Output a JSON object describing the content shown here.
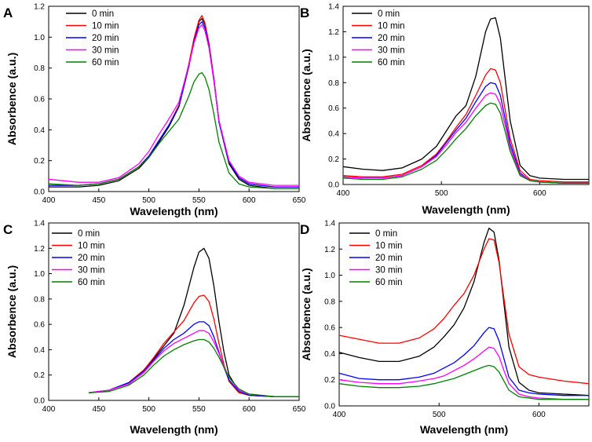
{
  "chart_data": [
    {
      "type": "line",
      "panel": "A",
      "xlabel": "Wavelength (nm)",
      "ylabel": "Absorbence (a.u.)",
      "xlim": [
        400,
        650
      ],
      "ylim": [
        0,
        1.2
      ],
      "xticks": [
        "400",
        "450",
        "500",
        "550",
        "600",
        "650"
      ],
      "yticks": [
        "0.0",
        "0.2",
        "0.4",
        "0.6",
        "0.8",
        "1.0",
        "1.2"
      ],
      "legend_position": "top-left",
      "series": [
        {
          "name": "0 min",
          "color": "#000000",
          "x": [
            400,
            430,
            450,
            470,
            490,
            500,
            510,
            520,
            530,
            540,
            545,
            550,
            553,
            556,
            560,
            565,
            570,
            580,
            590,
            600,
            625,
            650
          ],
          "y": [
            0.03,
            0.03,
            0.04,
            0.07,
            0.15,
            0.22,
            0.32,
            0.42,
            0.55,
            0.82,
            0.98,
            1.1,
            1.12,
            1.08,
            0.95,
            0.72,
            0.45,
            0.18,
            0.08,
            0.04,
            0.02,
            0.02
          ]
        },
        {
          "name": "10 min",
          "color": "#ff0000",
          "x": [
            400,
            430,
            450,
            470,
            490,
            500,
            510,
            520,
            530,
            540,
            545,
            550,
            553,
            556,
            560,
            565,
            570,
            580,
            590,
            600,
            625,
            650
          ],
          "y": [
            0.04,
            0.04,
            0.05,
            0.08,
            0.16,
            0.23,
            0.33,
            0.43,
            0.56,
            0.83,
            0.99,
            1.11,
            1.14,
            1.09,
            0.96,
            0.73,
            0.46,
            0.19,
            0.09,
            0.05,
            0.03,
            0.03
          ]
        },
        {
          "name": "20 min",
          "color": "#0000ff",
          "x": [
            400,
            430,
            450,
            470,
            490,
            500,
            510,
            520,
            530,
            540,
            545,
            550,
            553,
            556,
            560,
            565,
            570,
            580,
            590,
            600,
            625,
            650
          ],
          "y": [
            0.04,
            0.04,
            0.05,
            0.08,
            0.16,
            0.23,
            0.33,
            0.43,
            0.55,
            0.81,
            0.97,
            1.08,
            1.1,
            1.06,
            0.94,
            0.72,
            0.45,
            0.19,
            0.09,
            0.05,
            0.03,
            0.03
          ]
        },
        {
          "name": "30 min",
          "color": "#ff00ff",
          "x": [
            400,
            430,
            450,
            470,
            490,
            500,
            510,
            520,
            530,
            540,
            545,
            550,
            553,
            556,
            560,
            565,
            570,
            580,
            590,
            600,
            625,
            650
          ],
          "y": [
            0.08,
            0.06,
            0.06,
            0.09,
            0.18,
            0.26,
            0.37,
            0.47,
            0.58,
            0.82,
            0.96,
            1.06,
            1.08,
            1.04,
            0.93,
            0.71,
            0.46,
            0.2,
            0.1,
            0.06,
            0.04,
            0.04
          ]
        },
        {
          "name": "60 min",
          "color": "#008000",
          "x": [
            400,
            430,
            450,
            470,
            490,
            500,
            510,
            520,
            530,
            540,
            545,
            550,
            553,
            556,
            560,
            565,
            570,
            580,
            590,
            600,
            625,
            650
          ],
          "y": [
            0.05,
            0.04,
            0.05,
            0.08,
            0.16,
            0.22,
            0.31,
            0.39,
            0.47,
            0.62,
            0.71,
            0.76,
            0.77,
            0.74,
            0.66,
            0.5,
            0.32,
            0.12,
            0.05,
            0.03,
            0.02,
            0.02
          ]
        }
      ]
    },
    {
      "type": "line",
      "panel": "B",
      "xlabel": "Wavelength (nm)",
      "ylabel": "Absorbence (a.u.)",
      "xlim": [
        400,
        650
      ],
      "ylim": [
        0,
        1.4
      ],
      "xticks": [
        "400",
        "500",
        "600"
      ],
      "yticks": [
        "0.0",
        "0.2",
        "0.4",
        "0.6",
        "0.8",
        "1.0",
        "1.2",
        "1.4"
      ],
      "legend_position": "top-left",
      "series": [
        {
          "name": "0 min",
          "color": "#000000",
          "x": [
            400,
            420,
            440,
            460,
            480,
            495,
            505,
            515,
            525,
            535,
            545,
            550,
            555,
            560,
            565,
            570,
            580,
            590,
            600,
            625,
            650
          ],
          "y": [
            0.14,
            0.12,
            0.11,
            0.13,
            0.2,
            0.3,
            0.42,
            0.54,
            0.62,
            0.85,
            1.2,
            1.3,
            1.31,
            1.15,
            0.82,
            0.5,
            0.15,
            0.07,
            0.05,
            0.04,
            0.04
          ]
        },
        {
          "name": "10 min",
          "color": "#ff0000",
          "x": [
            400,
            420,
            440,
            460,
            480,
            495,
            505,
            515,
            525,
            535,
            545,
            550,
            555,
            560,
            565,
            570,
            580,
            590,
            600,
            625,
            650
          ],
          "y": [
            0.07,
            0.06,
            0.06,
            0.08,
            0.15,
            0.24,
            0.34,
            0.45,
            0.55,
            0.7,
            0.86,
            0.91,
            0.9,
            0.8,
            0.58,
            0.36,
            0.11,
            0.04,
            0.03,
            0.02,
            0.02
          ]
        },
        {
          "name": "20 min",
          "color": "#0000ff",
          "x": [
            400,
            420,
            440,
            460,
            480,
            495,
            505,
            515,
            525,
            535,
            545,
            550,
            555,
            560,
            565,
            570,
            580,
            590,
            600,
            625,
            650
          ],
          "y": [
            0.06,
            0.05,
            0.05,
            0.07,
            0.14,
            0.23,
            0.33,
            0.43,
            0.52,
            0.65,
            0.77,
            0.8,
            0.79,
            0.7,
            0.51,
            0.32,
            0.09,
            0.03,
            0.02,
            0.01,
            0.01
          ]
        },
        {
          "name": "30 min",
          "color": "#ff00ff",
          "x": [
            400,
            420,
            440,
            460,
            480,
            495,
            505,
            515,
            525,
            535,
            545,
            550,
            555,
            560,
            565,
            570,
            580,
            590,
            600,
            625,
            650
          ],
          "y": [
            0.06,
            0.05,
            0.05,
            0.07,
            0.14,
            0.22,
            0.31,
            0.41,
            0.49,
            0.6,
            0.7,
            0.72,
            0.71,
            0.63,
            0.46,
            0.29,
            0.08,
            0.03,
            0.02,
            0.01,
            0.01
          ]
        },
        {
          "name": "60 min",
          "color": "#008000",
          "x": [
            400,
            420,
            440,
            460,
            480,
            495,
            505,
            515,
            525,
            535,
            545,
            550,
            555,
            560,
            565,
            570,
            580,
            590,
            600,
            625,
            650
          ],
          "y": [
            0.05,
            0.04,
            0.04,
            0.06,
            0.12,
            0.19,
            0.27,
            0.36,
            0.44,
            0.54,
            0.62,
            0.64,
            0.63,
            0.56,
            0.41,
            0.26,
            0.07,
            0.03,
            0.02,
            0.01,
            0.01
          ]
        }
      ]
    },
    {
      "type": "line",
      "panel": "C",
      "xlabel": "Wavelength (nm)",
      "ylabel": "Absorbence (a.u.)",
      "xlim": [
        400,
        650
      ],
      "ylim": [
        0,
        1.4
      ],
      "xticks": [
        "400",
        "450",
        "500",
        "550",
        "600",
        "650"
      ],
      "yticks": [
        "0.0",
        "0.2",
        "0.4",
        "0.6",
        "0.8",
        "1.0",
        "1.2",
        "1.4"
      ],
      "legend_position": "top-left",
      "series": [
        {
          "name": "0 min",
          "color": "#000000",
          "x": [
            440,
            460,
            480,
            495,
            505,
            515,
            525,
            535,
            545,
            550,
            555,
            560,
            565,
            570,
            575,
            580,
            590,
            600,
            625,
            650
          ],
          "y": [
            0.06,
            0.08,
            0.14,
            0.24,
            0.33,
            0.43,
            0.53,
            0.75,
            1.05,
            1.17,
            1.2,
            1.12,
            0.9,
            0.62,
            0.38,
            0.2,
            0.07,
            0.04,
            0.03,
            0.03
          ]
        },
        {
          "name": "10 min",
          "color": "#ff0000",
          "x": [
            440,
            460,
            480,
            495,
            505,
            515,
            525,
            535,
            545,
            550,
            555,
            560,
            565,
            570,
            575,
            580,
            590,
            600,
            625,
            650
          ],
          "y": [
            0.06,
            0.08,
            0.14,
            0.24,
            0.34,
            0.45,
            0.54,
            0.63,
            0.77,
            0.82,
            0.83,
            0.78,
            0.64,
            0.45,
            0.28,
            0.15,
            0.06,
            0.04,
            0.03,
            0.03
          ]
        },
        {
          "name": "20 min",
          "color": "#0000ff",
          "x": [
            440,
            460,
            480,
            495,
            505,
            515,
            525,
            535,
            545,
            550,
            555,
            560,
            565,
            570,
            575,
            580,
            590,
            600,
            625,
            650
          ],
          "y": [
            0.06,
            0.08,
            0.14,
            0.23,
            0.32,
            0.41,
            0.48,
            0.53,
            0.6,
            0.62,
            0.62,
            0.59,
            0.5,
            0.38,
            0.26,
            0.16,
            0.07,
            0.04,
            0.03,
            0.03
          ]
        },
        {
          "name": "30 min",
          "color": "#ff00ff",
          "x": [
            440,
            460,
            480,
            495,
            505,
            515,
            525,
            535,
            545,
            550,
            555,
            560,
            565,
            570,
            575,
            580,
            590,
            600,
            625,
            650
          ],
          "y": [
            0.06,
            0.08,
            0.13,
            0.22,
            0.31,
            0.39,
            0.45,
            0.49,
            0.53,
            0.55,
            0.55,
            0.53,
            0.46,
            0.37,
            0.27,
            0.18,
            0.08,
            0.05,
            0.03,
            0.03
          ]
        },
        {
          "name": "60 min",
          "color": "#008000",
          "x": [
            440,
            460,
            480,
            495,
            505,
            515,
            525,
            535,
            545,
            550,
            555,
            560,
            565,
            570,
            575,
            580,
            590,
            600,
            625,
            650
          ],
          "y": [
            0.06,
            0.07,
            0.12,
            0.2,
            0.28,
            0.35,
            0.4,
            0.44,
            0.47,
            0.48,
            0.48,
            0.46,
            0.41,
            0.34,
            0.26,
            0.18,
            0.09,
            0.05,
            0.03,
            0.03
          ]
        }
      ]
    },
    {
      "type": "line",
      "panel": "D",
      "xlabel": "Wavelength (nm)",
      "ylabel": "Absorbence (a.u.)",
      "xlim": [
        400,
        650
      ],
      "ylim": [
        0,
        1.4
      ],
      "xticks": [
        "400",
        "500",
        "600"
      ],
      "yticks": [
        "0.0",
        "0.2",
        "0.4",
        "0.6",
        "0.8",
        "1.0",
        "1.2",
        "1.4"
      ],
      "legend_position": "top-left",
      "series": [
        {
          "name": "0 min",
          "color": "#000000",
          "x": [
            400,
            420,
            440,
            460,
            480,
            495,
            505,
            515,
            525,
            535,
            545,
            550,
            555,
            560,
            565,
            570,
            580,
            590,
            600,
            625,
            650
          ],
          "y": [
            0.41,
            0.37,
            0.34,
            0.34,
            0.38,
            0.45,
            0.53,
            0.62,
            0.75,
            0.95,
            1.25,
            1.36,
            1.33,
            1.12,
            0.78,
            0.45,
            0.18,
            0.12,
            0.1,
            0.09,
            0.08
          ]
        },
        {
          "name": "10 min",
          "color": "#ff0000",
          "x": [
            400,
            420,
            440,
            460,
            480,
            495,
            505,
            515,
            525,
            535,
            545,
            550,
            555,
            560,
            565,
            570,
            580,
            590,
            600,
            625,
            650
          ],
          "y": [
            0.54,
            0.51,
            0.48,
            0.48,
            0.52,
            0.59,
            0.67,
            0.77,
            0.86,
            1.0,
            1.2,
            1.28,
            1.27,
            1.1,
            0.82,
            0.55,
            0.3,
            0.24,
            0.22,
            0.19,
            0.17
          ]
        },
        {
          "name": "20 min",
          "color": "#0000ff",
          "x": [
            400,
            420,
            440,
            460,
            480,
            495,
            505,
            515,
            525,
            535,
            545,
            550,
            555,
            560,
            565,
            570,
            580,
            590,
            600,
            625,
            650
          ],
          "y": [
            0.25,
            0.21,
            0.2,
            0.2,
            0.22,
            0.25,
            0.29,
            0.33,
            0.39,
            0.46,
            0.56,
            0.6,
            0.59,
            0.5,
            0.36,
            0.22,
            0.12,
            0.1,
            0.09,
            0.08,
            0.08
          ]
        },
        {
          "name": "30 min",
          "color": "#ff00ff",
          "x": [
            400,
            420,
            440,
            460,
            480,
            495,
            505,
            515,
            525,
            535,
            545,
            550,
            555,
            560,
            565,
            570,
            580,
            590,
            600,
            625,
            650
          ],
          "y": [
            0.2,
            0.18,
            0.17,
            0.17,
            0.19,
            0.21,
            0.23,
            0.27,
            0.31,
            0.36,
            0.42,
            0.45,
            0.44,
            0.38,
            0.27,
            0.17,
            0.09,
            0.07,
            0.06,
            0.05,
            0.05
          ]
        },
        {
          "name": "60 min",
          "color": "#008000",
          "x": [
            400,
            420,
            440,
            460,
            480,
            495,
            505,
            515,
            525,
            535,
            545,
            550,
            555,
            560,
            565,
            570,
            580,
            590,
            600,
            625,
            650
          ],
          "y": [
            0.17,
            0.15,
            0.14,
            0.14,
            0.15,
            0.17,
            0.19,
            0.21,
            0.24,
            0.27,
            0.3,
            0.31,
            0.3,
            0.26,
            0.19,
            0.12,
            0.07,
            0.06,
            0.05,
            0.05,
            0.05
          ]
        }
      ]
    }
  ]
}
